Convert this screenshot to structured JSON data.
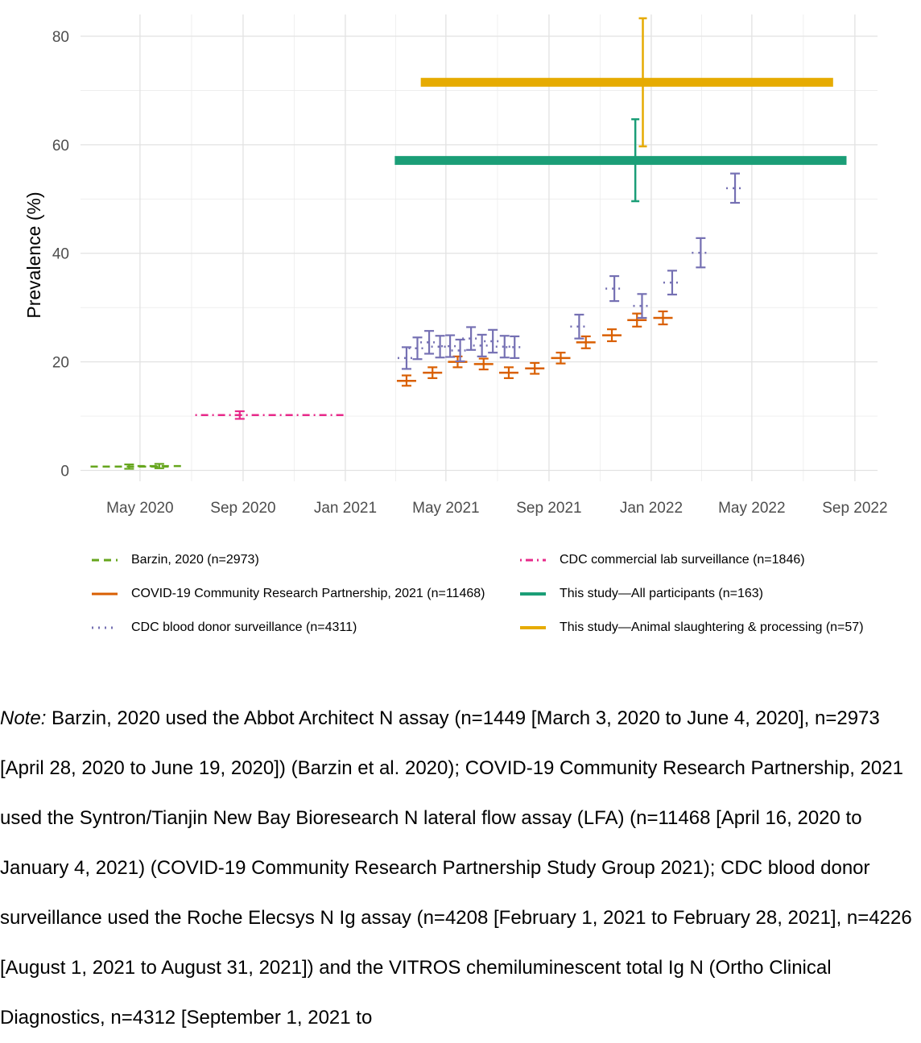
{
  "chart_data": {
    "type": "scatter",
    "ylabel": "Prevalence (%)",
    "xlabel": "",
    "ylim": [
      -2,
      84
    ],
    "xlim": [
      "2020-02-20",
      "2022-09-28"
    ],
    "yticks": [
      0,
      20,
      40,
      60,
      80
    ],
    "xticks": [
      {
        "date": "2020-05-01",
        "label": "May 2020"
      },
      {
        "date": "2020-09-01",
        "label": "Sep 2020"
      },
      {
        "date": "2021-01-01",
        "label": "Jan 2021"
      },
      {
        "date": "2021-05-01",
        "label": "May 2021"
      },
      {
        "date": "2021-09-01",
        "label": "Sep 2021"
      },
      {
        "date": "2022-01-01",
        "label": "Jan 2022"
      },
      {
        "date": "2022-05-01",
        "label": "May 2022"
      },
      {
        "date": "2022-09-01",
        "label": "Sep 2022"
      }
    ],
    "grid": true,
    "legend_position": "bottom",
    "series": [
      {
        "name": "Barzin, 2020 (n=2973)",
        "color": "#66a61e",
        "linetype": "dashed",
        "points": [
          {
            "start": "2020-03-03",
            "end": "2020-06-04",
            "date": "2020-04-18",
            "y": 0.7,
            "ylo": 0.3,
            "yhi": 1.1
          },
          {
            "start": "2020-04-28",
            "end": "2020-06-19",
            "date": "2020-05-24",
            "y": 0.8,
            "ylo": 0.4,
            "yhi": 1.2
          }
        ]
      },
      {
        "name": "CDC commercial lab surveillance (n=1846)",
        "color": "#e7298a",
        "linetype": "dotdash",
        "points": [
          {
            "start": "2020-07-06",
            "end": "2020-12-31",
            "date": "2020-08-28",
            "y": 10.2,
            "ylo": 9.5,
            "yhi": 10.9
          }
        ]
      },
      {
        "name": "COVID-19 Community Research Partnership, 2021 (n=11468)",
        "color": "#d95f02",
        "linetype": "solid",
        "points": [
          {
            "date": "2021-03-15",
            "y": 16.5,
            "ylo": 15.6,
            "yhi": 17.5
          },
          {
            "date": "2021-04-15",
            "y": 18.0,
            "ylo": 17.0,
            "yhi": 19.0
          },
          {
            "date": "2021-05-15",
            "y": 20.0,
            "ylo": 19.0,
            "yhi": 21.0
          },
          {
            "date": "2021-06-15",
            "y": 19.6,
            "ylo": 18.6,
            "yhi": 20.6
          },
          {
            "date": "2021-07-15",
            "y": 18.0,
            "ylo": 17.0,
            "yhi": 19.0
          },
          {
            "date": "2021-08-15",
            "y": 18.8,
            "ylo": 17.8,
            "yhi": 19.8
          },
          {
            "date": "2021-09-15",
            "y": 20.7,
            "ylo": 19.7,
            "yhi": 21.7
          },
          {
            "date": "2021-10-15",
            "y": 23.6,
            "ylo": 22.5,
            "yhi": 24.7
          },
          {
            "date": "2021-11-15",
            "y": 24.9,
            "ylo": 23.8,
            "yhi": 26.0
          },
          {
            "date": "2021-12-15",
            "y": 27.7,
            "ylo": 26.5,
            "yhi": 28.9
          },
          {
            "date": "2022-01-15",
            "y": 28.1,
            "ylo": 26.9,
            "yhi": 29.3
          }
        ]
      },
      {
        "name": "CDC blood donor surveillance (n=4311)",
        "color": "#7570b3",
        "linetype": "dotted",
        "points": [
          {
            "date": "2021-03-15",
            "y": 20.7,
            "ylo": 18.7,
            "yhi": 22.7
          },
          {
            "date": "2021-03-28",
            "y": 22.5,
            "ylo": 20.5,
            "yhi": 24.5
          },
          {
            "date": "2021-04-11",
            "y": 23.6,
            "ylo": 21.5,
            "yhi": 25.7
          },
          {
            "date": "2021-04-24",
            "y": 22.8,
            "ylo": 20.8,
            "yhi": 24.8
          },
          {
            "date": "2021-05-06",
            "y": 22.9,
            "ylo": 20.9,
            "yhi": 24.9
          },
          {
            "date": "2021-05-18",
            "y": 22.1,
            "ylo": 20.1,
            "yhi": 24.1
          },
          {
            "date": "2021-05-31",
            "y": 24.3,
            "ylo": 22.2,
            "yhi": 26.4
          },
          {
            "date": "2021-06-13",
            "y": 23.0,
            "ylo": 21.0,
            "yhi": 25.0
          },
          {
            "date": "2021-06-26",
            "y": 23.8,
            "ylo": 21.7,
            "yhi": 25.9
          },
          {
            "date": "2021-07-10",
            "y": 22.8,
            "ylo": 20.8,
            "yhi": 24.8
          },
          {
            "date": "2021-07-22",
            "y": 22.7,
            "ylo": 20.7,
            "yhi": 24.7
          },
          {
            "date": "2021-10-07",
            "y": 26.5,
            "ylo": 24.3,
            "yhi": 28.7
          },
          {
            "date": "2021-11-18",
            "y": 33.5,
            "ylo": 31.2,
            "yhi": 35.8
          },
          {
            "date": "2021-12-21",
            "y": 30.3,
            "ylo": 28.1,
            "yhi": 32.5
          },
          {
            "date": "2022-01-26",
            "y": 34.6,
            "ylo": 32.4,
            "yhi": 36.8
          },
          {
            "date": "2022-03-01",
            "y": 40.1,
            "ylo": 37.4,
            "yhi": 42.8
          },
          {
            "date": "2022-04-11",
            "y": 52.0,
            "ylo": 49.3,
            "yhi": 54.7
          }
        ]
      },
      {
        "name": "This study—All participants (n=163)",
        "color": "#1b9e77",
        "linetype": "solid",
        "bar_start": "2021-03-01",
        "bar_end": "2022-08-22",
        "points": [
          {
            "date": "2021-12-13",
            "y": 57.1,
            "ylo": 49.6,
            "yhi": 64.7
          }
        ]
      },
      {
        "name": "This study—Animal slaughtering & processing (n=57)",
        "color": "#e6ab02",
        "linetype": "solid",
        "bar_start": "2021-04-01",
        "bar_end": "2022-08-06",
        "points": [
          {
            "date": "2021-12-22",
            "y": 71.5,
            "ylo": 59.7,
            "yhi": 83.3
          }
        ]
      }
    ]
  },
  "note": {
    "label": "Note:",
    "text": " Barzin, 2020 used the Abbot Architect N assay (n=1449 [March 3, 2020 to June 4, 2020], n=2973 [April 28, 2020 to June 19, 2020]) (Barzin et al. 2020); COVID-19 Community Research Partnership, 2021 used the Syntron/Tianjin New Bay Bioresearch N lateral flow assay (LFA) (n=11468 [April 16, 2020 to January 4, 2021) (COVID-19 Community Research Partnership Study Group 2021); CDC blood donor surveillance used the Roche Elecsys N Ig assay (n=4208 [February 1, 2021 to February 28, 2021], n=4226 [August 1, 2021 to August 31, 2021]) and the VITROS chemiluminescent total Ig N (Ortho Clinical Diagnostics, n=4312 [September 1, 2021 to"
  }
}
